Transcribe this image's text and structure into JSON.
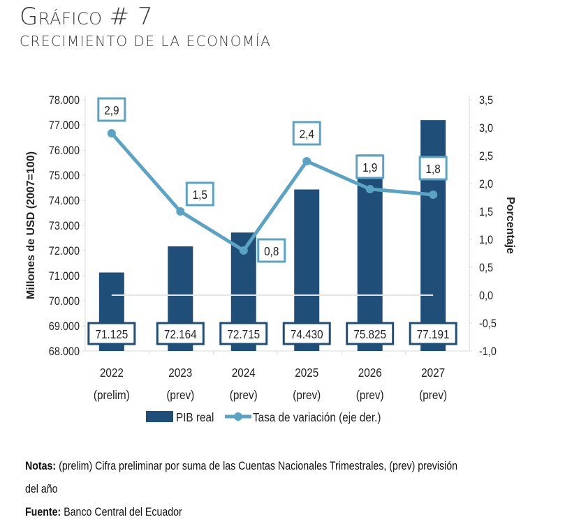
{
  "header": {
    "title_first_letter": "G",
    "title_rest": "ráfico",
    "title_number": "# 7",
    "subtitle": "Crecimiento de la economía"
  },
  "chart_data": {
    "type": "bar",
    "title": "Crecimiento de la economía",
    "categories": [
      {
        "year": "2022",
        "note": "(prelim)"
      },
      {
        "year": "2023",
        "note": "(prev)"
      },
      {
        "year": "2024",
        "note": "(prev)"
      },
      {
        "year": "2025",
        "note": "(prev)"
      },
      {
        "year": "2026",
        "note": "(prev)"
      },
      {
        "year": "2027",
        "note": "(prev)"
      }
    ],
    "series": [
      {
        "name": "PIB real",
        "type": "bar",
        "axis": "left",
        "color": "#1f4e79",
        "values": [
          71125,
          72164,
          72715,
          74430,
          75825,
          77191
        ],
        "labels": [
          "71.125",
          "72.164",
          "72.715",
          "74.430",
          "75.825",
          "77.191"
        ]
      },
      {
        "name": "Tasa de variación (eje der.)",
        "type": "line",
        "axis": "right",
        "color": "#5ba3c4",
        "values": [
          2.9,
          1.5,
          0.8,
          2.4,
          1.9,
          1.8
        ],
        "labels": [
          "2,9",
          "1,5",
          "0,8",
          "2,4",
          "1,9",
          "1,8"
        ]
      }
    ],
    "ylabel": "Millones de USD (2007=100)",
    "y2label": "Porcentaje",
    "ylim": [
      68000,
      78000
    ],
    "y2lim": [
      -1.0,
      3.5
    ],
    "yticks": [
      "68.000",
      "69.000",
      "70.000",
      "71.000",
      "72.000",
      "73.000",
      "74.000",
      "75.000",
      "76.000",
      "77.000",
      "78.000"
    ],
    "y2ticks": [
      "-1,0",
      "-0,5",
      "0,0",
      "0,5",
      "1,0",
      "1,5",
      "2,0",
      "2,5",
      "3,0",
      "3,5"
    ],
    "legend_position": "bottom",
    "grid": false
  },
  "footer": {
    "notes_label": "Notas:",
    "notes_text": " (prelim) Cifra preliminar por suma de las Cuentas Nacionales Trimestrales, (prev) previsión",
    "notes_text_cont": "del año",
    "source_label": "Fuente:",
    "source_text": " Banco Central del Ecuador"
  }
}
